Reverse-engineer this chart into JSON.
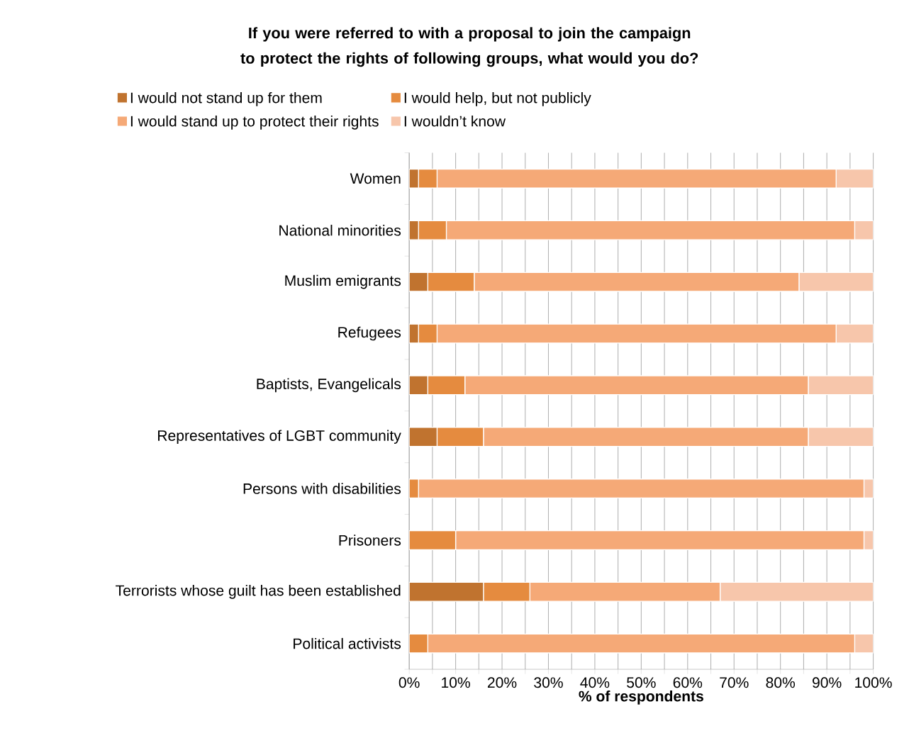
{
  "chart_data": {
    "type": "bar",
    "orientation": "horizontal",
    "stacked": true,
    "title": "If you were referred to with a proposal to join the campaign to protect the rights of following groups, what would you do?",
    "xlabel": "% of respondents",
    "categories": [
      "Women",
      "National minorities",
      "Muslim emigrants",
      "Refugees",
      "Baptists, Evangelicals",
      "Representatives of LGBT community",
      "Persons with disabilities",
      "Prisoners",
      "Terrorists whose guilt has been established",
      "Political activists"
    ],
    "series": [
      {
        "name": "I would not stand up for them",
        "color": "#c0732f",
        "values": [
          2,
          2,
          4,
          2,
          4,
          6,
          0,
          0,
          16,
          0
        ]
      },
      {
        "name": "I would help, but not publicly",
        "color": "#e58b3f",
        "values": [
          4,
          6,
          10,
          4,
          8,
          10,
          2,
          10,
          10,
          4
        ]
      },
      {
        "name": "I would stand up to protect their rights",
        "color": "#f5a977",
        "values": [
          86,
          88,
          70,
          86,
          74,
          70,
          96,
          88,
          41,
          92
        ]
      },
      {
        "name": "I wouldn’t know",
        "color": "#f7c6ab",
        "values": [
          8,
          4,
          16,
          8,
          14,
          14,
          2,
          2,
          33,
          4
        ]
      }
    ],
    "xlim": [
      0,
      100
    ],
    "xticks": [
      {
        "value": 0,
        "label": "0%"
      },
      {
        "value": 5,
        "label": null
      },
      {
        "value": 10,
        "label": "10%"
      },
      {
        "value": 15,
        "label": null
      },
      {
        "value": 20,
        "label": "20%"
      },
      {
        "value": 25,
        "label": null
      },
      {
        "value": 30,
        "label": "30%"
      },
      {
        "value": 35,
        "label": null
      },
      {
        "value": 40,
        "label": "40%"
      },
      {
        "value": 45,
        "label": null
      },
      {
        "value": 50,
        "label": "50%"
      },
      {
        "value": 55,
        "label": null
      },
      {
        "value": 60,
        "label": "60%"
      },
      {
        "value": 65,
        "label": null
      },
      {
        "value": 70,
        "label": "70%"
      },
      {
        "value": 75,
        "label": null
      },
      {
        "value": 80,
        "label": "80%"
      },
      {
        "value": 85,
        "label": null
      },
      {
        "value": 90,
        "label": "90%"
      },
      {
        "value": 95,
        "label": null
      },
      {
        "value": 100,
        "label": "100%"
      }
    ],
    "grid": "x",
    "legend": "top"
  }
}
